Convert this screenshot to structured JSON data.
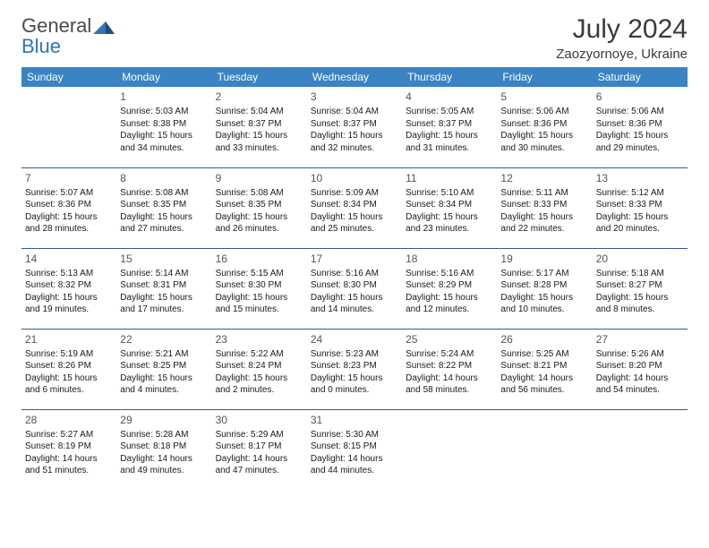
{
  "logo": {
    "text1": "General",
    "text2": "Blue"
  },
  "title": "July 2024",
  "subtitle": "Zaozyornoye, Ukraine",
  "headers": [
    "Sunday",
    "Monday",
    "Tuesday",
    "Wednesday",
    "Thursday",
    "Friday",
    "Saturday"
  ],
  "colors": {
    "header_bg": "#3a83c4",
    "header_text": "#ffffff",
    "row_border": "#2e5e8f",
    "logo_blue": "#2e75b6",
    "text": "#1a1a1a"
  },
  "weeks": [
    [
      null,
      {
        "n": "1",
        "l": [
          "Sunrise: 5:03 AM",
          "Sunset: 8:38 PM",
          "Daylight: 15 hours",
          "and 34 minutes."
        ]
      },
      {
        "n": "2",
        "l": [
          "Sunrise: 5:04 AM",
          "Sunset: 8:37 PM",
          "Daylight: 15 hours",
          "and 33 minutes."
        ]
      },
      {
        "n": "3",
        "l": [
          "Sunrise: 5:04 AM",
          "Sunset: 8:37 PM",
          "Daylight: 15 hours",
          "and 32 minutes."
        ]
      },
      {
        "n": "4",
        "l": [
          "Sunrise: 5:05 AM",
          "Sunset: 8:37 PM",
          "Daylight: 15 hours",
          "and 31 minutes."
        ]
      },
      {
        "n": "5",
        "l": [
          "Sunrise: 5:06 AM",
          "Sunset: 8:36 PM",
          "Daylight: 15 hours",
          "and 30 minutes."
        ]
      },
      {
        "n": "6",
        "l": [
          "Sunrise: 5:06 AM",
          "Sunset: 8:36 PM",
          "Daylight: 15 hours",
          "and 29 minutes."
        ]
      }
    ],
    [
      {
        "n": "7",
        "l": [
          "Sunrise: 5:07 AM",
          "Sunset: 8:36 PM",
          "Daylight: 15 hours",
          "and 28 minutes."
        ]
      },
      {
        "n": "8",
        "l": [
          "Sunrise: 5:08 AM",
          "Sunset: 8:35 PM",
          "Daylight: 15 hours",
          "and 27 minutes."
        ]
      },
      {
        "n": "9",
        "l": [
          "Sunrise: 5:08 AM",
          "Sunset: 8:35 PM",
          "Daylight: 15 hours",
          "and 26 minutes."
        ]
      },
      {
        "n": "10",
        "l": [
          "Sunrise: 5:09 AM",
          "Sunset: 8:34 PM",
          "Daylight: 15 hours",
          "and 25 minutes."
        ]
      },
      {
        "n": "11",
        "l": [
          "Sunrise: 5:10 AM",
          "Sunset: 8:34 PM",
          "Daylight: 15 hours",
          "and 23 minutes."
        ]
      },
      {
        "n": "12",
        "l": [
          "Sunrise: 5:11 AM",
          "Sunset: 8:33 PM",
          "Daylight: 15 hours",
          "and 22 minutes."
        ]
      },
      {
        "n": "13",
        "l": [
          "Sunrise: 5:12 AM",
          "Sunset: 8:33 PM",
          "Daylight: 15 hours",
          "and 20 minutes."
        ]
      }
    ],
    [
      {
        "n": "14",
        "l": [
          "Sunrise: 5:13 AM",
          "Sunset: 8:32 PM",
          "Daylight: 15 hours",
          "and 19 minutes."
        ]
      },
      {
        "n": "15",
        "l": [
          "Sunrise: 5:14 AM",
          "Sunset: 8:31 PM",
          "Daylight: 15 hours",
          "and 17 minutes."
        ]
      },
      {
        "n": "16",
        "l": [
          "Sunrise: 5:15 AM",
          "Sunset: 8:30 PM",
          "Daylight: 15 hours",
          "and 15 minutes."
        ]
      },
      {
        "n": "17",
        "l": [
          "Sunrise: 5:16 AM",
          "Sunset: 8:30 PM",
          "Daylight: 15 hours",
          "and 14 minutes."
        ]
      },
      {
        "n": "18",
        "l": [
          "Sunrise: 5:16 AM",
          "Sunset: 8:29 PM",
          "Daylight: 15 hours",
          "and 12 minutes."
        ]
      },
      {
        "n": "19",
        "l": [
          "Sunrise: 5:17 AM",
          "Sunset: 8:28 PM",
          "Daylight: 15 hours",
          "and 10 minutes."
        ]
      },
      {
        "n": "20",
        "l": [
          "Sunrise: 5:18 AM",
          "Sunset: 8:27 PM",
          "Daylight: 15 hours",
          "and 8 minutes."
        ]
      }
    ],
    [
      {
        "n": "21",
        "l": [
          "Sunrise: 5:19 AM",
          "Sunset: 8:26 PM",
          "Daylight: 15 hours",
          "and 6 minutes."
        ]
      },
      {
        "n": "22",
        "l": [
          "Sunrise: 5:21 AM",
          "Sunset: 8:25 PM",
          "Daylight: 15 hours",
          "and 4 minutes."
        ]
      },
      {
        "n": "23",
        "l": [
          "Sunrise: 5:22 AM",
          "Sunset: 8:24 PM",
          "Daylight: 15 hours",
          "and 2 minutes."
        ]
      },
      {
        "n": "24",
        "l": [
          "Sunrise: 5:23 AM",
          "Sunset: 8:23 PM",
          "Daylight: 15 hours",
          "and 0 minutes."
        ]
      },
      {
        "n": "25",
        "l": [
          "Sunrise: 5:24 AM",
          "Sunset: 8:22 PM",
          "Daylight: 14 hours",
          "and 58 minutes."
        ]
      },
      {
        "n": "26",
        "l": [
          "Sunrise: 5:25 AM",
          "Sunset: 8:21 PM",
          "Daylight: 14 hours",
          "and 56 minutes."
        ]
      },
      {
        "n": "27",
        "l": [
          "Sunrise: 5:26 AM",
          "Sunset: 8:20 PM",
          "Daylight: 14 hours",
          "and 54 minutes."
        ]
      }
    ],
    [
      {
        "n": "28",
        "l": [
          "Sunrise: 5:27 AM",
          "Sunset: 8:19 PM",
          "Daylight: 14 hours",
          "and 51 minutes."
        ]
      },
      {
        "n": "29",
        "l": [
          "Sunrise: 5:28 AM",
          "Sunset: 8:18 PM",
          "Daylight: 14 hours",
          "and 49 minutes."
        ]
      },
      {
        "n": "30",
        "l": [
          "Sunrise: 5:29 AM",
          "Sunset: 8:17 PM",
          "Daylight: 14 hours",
          "and 47 minutes."
        ]
      },
      {
        "n": "31",
        "l": [
          "Sunrise: 5:30 AM",
          "Sunset: 8:15 PM",
          "Daylight: 14 hours",
          "and 44 minutes."
        ]
      },
      null,
      null,
      null
    ]
  ]
}
